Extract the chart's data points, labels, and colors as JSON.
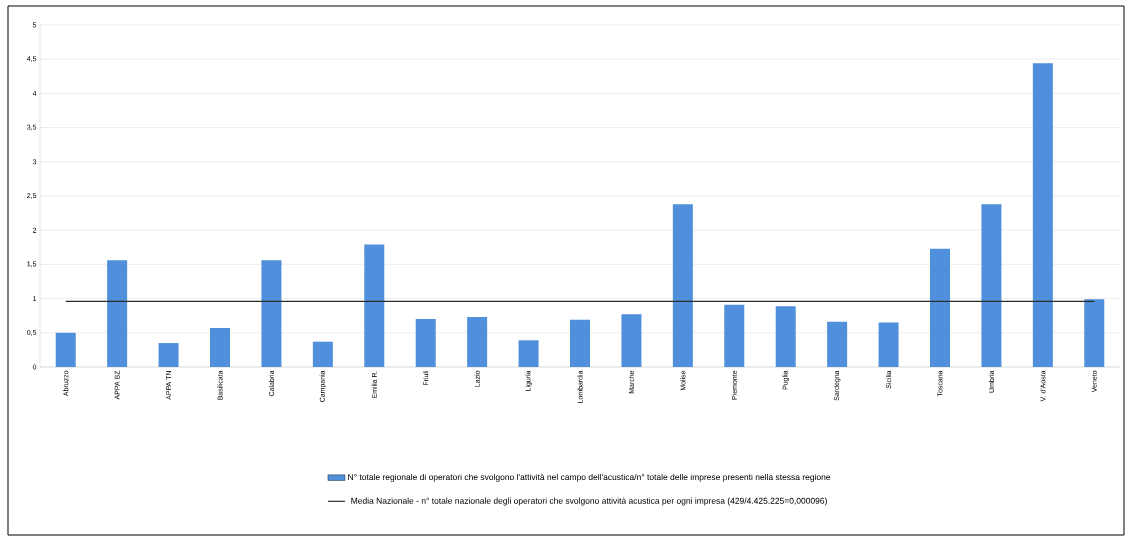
{
  "chart_data": {
    "type": "bar",
    "categories": [
      "Abruzzo",
      "APPA BZ",
      "APPA TN",
      "Basilicata",
      "Calabria",
      "Campania",
      "Emilia R.",
      "Friuli",
      "Lazio",
      "Liguria",
      "Lombardia",
      "Marche",
      "Molise",
      "Piemonte",
      "Puglia",
      "Sardegna",
      "Sicilia",
      "Toscana",
      "Umbria",
      "V. d'Aosta",
      "Veneto"
    ],
    "series": [
      {
        "name": "N° totale regionale di operatori che svolgono l'attività nel campo dell'acustica/n° totale delle imprese presenti nella stessa regione",
        "color": "#4f8fdc",
        "values": [
          0.5,
          1.56,
          0.35,
          0.57,
          1.56,
          0.37,
          1.79,
          0.7,
          0.73,
          0.39,
          0.69,
          0.77,
          2.38,
          0.91,
          0.89,
          0.66,
          0.65,
          1.73,
          2.38,
          4.44,
          0.99
        ]
      },
      {
        "name": "Media Nazionale - n° totale nazionale degli operatori che svolgono attività acustica per ogni impresa (429/4.425.225=0,000096)",
        "type": "line",
        "color": "#2b2b2b",
        "values": [
          0.96,
          0.96,
          0.96,
          0.96,
          0.96,
          0.96,
          0.96,
          0.96,
          0.96,
          0.96,
          0.96,
          0.96,
          0.96,
          0.96,
          0.96,
          0.96,
          0.96,
          0.96,
          0.96,
          0.96,
          0.96
        ]
      }
    ],
    "ylim": [
      0,
      5
    ],
    "yticks": [
      0,
      {
        "value": 0.5,
        "label": "0,5"
      },
      1,
      {
        "value": 1.5,
        "label": "1,5"
      },
      2,
      {
        "value": 2.5,
        "label": "2,5"
      },
      3,
      {
        "value": 3.5,
        "label": "3,5"
      },
      4,
      {
        "value": 4.5,
        "label": "4,5"
      },
      5
    ],
    "grid": "y",
    "legend": "bottom"
  }
}
